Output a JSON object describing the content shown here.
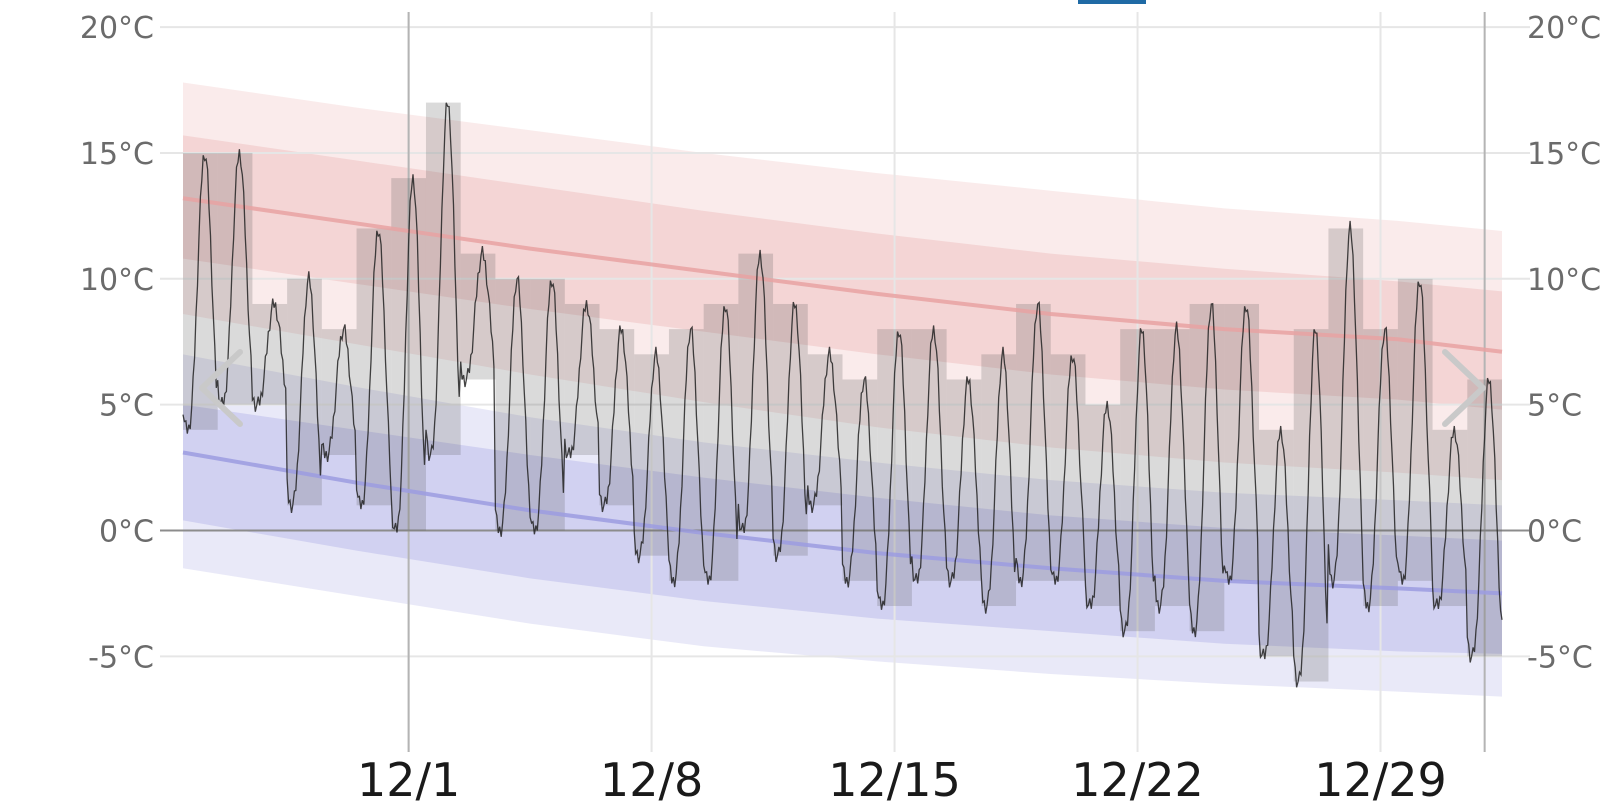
{
  "chart_data": {
    "type": "area",
    "x_labels": [
      "12/1",
      "12/8",
      "12/15",
      "12/22",
      "12/29"
    ],
    "y_ticks": [
      {
        "value": 20,
        "label": "20°C"
      },
      {
        "value": 15,
        "label": "15°C"
      },
      {
        "value": 10,
        "label": "10°C"
      },
      {
        "value": 5,
        "label": "5°C"
      },
      {
        "value": 0,
        "label": "0°C"
      },
      {
        "value": -5,
        "label": "-5°C"
      }
    ],
    "ylim": [
      -8.8,
      20.6
    ],
    "xlim_days": [
      0,
      38
    ],
    "major_day_lines": [
      6.5,
      13.5,
      20.5,
      27.5,
      34.5
    ],
    "week_boundaries": [
      6.5,
      37.5
    ],
    "month_boundary": 37.5,
    "grid": true,
    "series": [
      {
        "role": "avg_high",
        "x": [
          0,
          5,
          10,
          15,
          20,
          25,
          30,
          35,
          38
        ],
        "values": [
          13.2,
          12.2,
          11.2,
          10.3,
          9.4,
          8.6,
          8.0,
          7.6,
          7.1
        ],
        "band_inner": {
          "lower": [
            10.8,
            9.8,
            8.8,
            7.9,
            7.0,
            6.2,
            5.6,
            5.2,
            4.8
          ],
          "upper": [
            15.7,
            14.7,
            13.7,
            12.7,
            11.8,
            11.0,
            10.4,
            9.9,
            9.5
          ]
        },
        "band_outer": {
          "lower": [
            8.6,
            7.4,
            6.2,
            5.1,
            4.1,
            3.3,
            2.7,
            2.3,
            2.0
          ],
          "upper": [
            17.8,
            16.8,
            15.9,
            15.0,
            14.2,
            13.5,
            12.8,
            12.3,
            11.9
          ]
        },
        "color": "#e8a2a2"
      },
      {
        "role": "avg_low",
        "x": [
          0,
          5,
          10,
          15,
          20,
          25,
          30,
          35,
          38
        ],
        "values": [
          3.1,
          1.9,
          0.8,
          -0.1,
          -0.9,
          -1.5,
          -2.0,
          -2.3,
          -2.5
        ],
        "band_inner": {
          "lower": [
            0.4,
            -0.8,
            -1.9,
            -2.8,
            -3.5,
            -4.0,
            -4.5,
            -4.8,
            -4.9
          ],
          "upper": [
            5.0,
            4.0,
            3.0,
            2.1,
            1.3,
            0.6,
            0.1,
            -0.2,
            -0.4
          ]
        },
        "band_outer": {
          "lower": [
            -1.5,
            -2.6,
            -3.7,
            -4.6,
            -5.2,
            -5.7,
            -6.1,
            -6.4,
            -6.6
          ],
          "upper": [
            7.0,
            5.7,
            4.5,
            3.5,
            2.7,
            2.0,
            1.5,
            1.2,
            1.0
          ]
        },
        "color": "#9c9ce0"
      }
    ],
    "daily_ranges": [
      {
        "day": 0,
        "low": 4,
        "high": 15
      },
      {
        "day": 1,
        "low": 5,
        "high": 15
      },
      {
        "day": 2,
        "low": 5,
        "high": 9
      },
      {
        "day": 3,
        "low": 1,
        "high": 10
      },
      {
        "day": 4,
        "low": 3,
        "high": 8
      },
      {
        "day": 5,
        "low": 1,
        "high": 12
      },
      {
        "day": 6,
        "low": 0,
        "high": 14
      },
      {
        "day": 7,
        "low": 3,
        "high": 17
      },
      {
        "day": 8,
        "low": 6,
        "high": 11
      },
      {
        "day": 9,
        "low": 0,
        "high": 10
      },
      {
        "day": 10,
        "low": 0,
        "high": 10
      },
      {
        "day": 11,
        "low": 3,
        "high": 9
      },
      {
        "day": 12,
        "low": 1,
        "high": 8
      },
      {
        "day": 13,
        "low": -1,
        "high": 7
      },
      {
        "day": 14,
        "low": -2,
        "high": 8
      },
      {
        "day": 15,
        "low": -2,
        "high": 9
      },
      {
        "day": 16,
        "low": 0,
        "high": 11
      },
      {
        "day": 17,
        "low": -1,
        "high": 9
      },
      {
        "day": 18,
        "low": 1,
        "high": 7
      },
      {
        "day": 19,
        "low": -2,
        "high": 6
      },
      {
        "day": 20,
        "low": -3,
        "high": 8
      },
      {
        "day": 21,
        "low": -2,
        "high": 8
      },
      {
        "day": 22,
        "low": -2,
        "high": 6
      },
      {
        "day": 23,
        "low": -3,
        "high": 7
      },
      {
        "day": 24,
        "low": -2,
        "high": 9
      },
      {
        "day": 25,
        "low": -2,
        "high": 7
      },
      {
        "day": 26,
        "low": -3,
        "high": 5
      },
      {
        "day": 27,
        "low": -4,
        "high": 8
      },
      {
        "day": 28,
        "low": -3,
        "high": 8
      },
      {
        "day": 29,
        "low": -4,
        "high": 9
      },
      {
        "day": 30,
        "low": -2,
        "high": 9
      },
      {
        "day": 31,
        "low": -5,
        "high": 4
      },
      {
        "day": 32,
        "low": -6,
        "high": 8
      },
      {
        "day": 33,
        "low": -2,
        "high": 12
      },
      {
        "day": 34,
        "low": -3,
        "high": 8
      },
      {
        "day": 35,
        "low": -2,
        "high": 10
      },
      {
        "day": 36,
        "low": -3,
        "high": 4
      },
      {
        "day": 37,
        "low": -5,
        "high": 6
      },
      {
        "day": 38,
        "low": -5,
        "high": 9
      }
    ],
    "colors": {
      "grid": "#e6e6e6",
      "week_line": "#b4b4b4",
      "zero_line": "#8c8c8c",
      "daily_bar": "#555555",
      "trace": "#222222"
    }
  },
  "nav": {
    "prev_icon": "chevron-left-icon",
    "next_icon": "chevron-right-icon"
  }
}
